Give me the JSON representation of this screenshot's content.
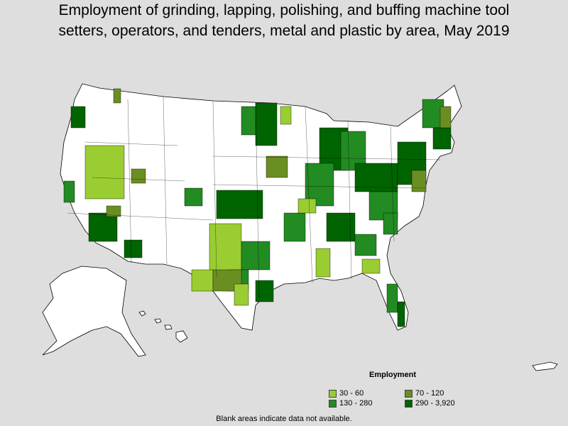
{
  "title_line1": "Employment of grinding, lapping, polishing, and buffing machine tool",
  "title_line2": "setters, operators, and tenders, metal and plastic by area, May 2019",
  "legend": {
    "title": "Employment",
    "items": [
      {
        "label": "30 - 60",
        "color": "#9acd32"
      },
      {
        "label": "70 - 120",
        "color": "#6b8e23"
      },
      {
        "label": "130 - 280",
        "color": "#228b22"
      },
      {
        "label": "290 - 3,920",
        "color": "#006400"
      }
    ]
  },
  "footnote": "Blank areas indicate data not available.",
  "colors": {
    "background": "#dedede",
    "no_data": "#ffffff",
    "border": "#000000"
  }
}
